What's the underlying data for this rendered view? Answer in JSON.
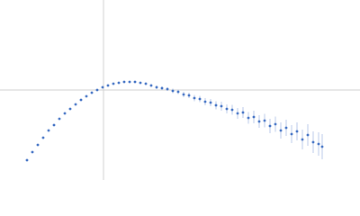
{
  "chart_data": {
    "type": "scatter",
    "x": [
      0.3,
      0.36,
      0.42,
      0.48,
      0.54,
      0.6,
      0.66,
      0.72,
      0.78,
      0.84,
      0.9,
      0.96,
      1.02,
      1.08,
      1.14,
      1.2,
      1.26,
      1.32,
      1.38,
      1.44,
      1.5,
      1.56,
      1.62,
      1.68,
      1.74,
      1.8,
      1.86,
      1.92,
      1.98,
      2.04,
      2.1,
      2.16,
      2.22,
      2.28,
      2.34,
      2.4,
      2.46,
      2.52,
      2.58,
      2.64,
      2.7,
      2.76,
      2.82,
      2.88,
      2.94,
      3.0,
      3.06,
      3.12,
      3.18,
      3.24,
      3.3,
      3.36,
      3.42,
      3.48,
      3.54,
      3.58
    ],
    "values": [
      -0.78,
      -0.69,
      -0.61,
      -0.53,
      -0.45,
      -0.39,
      -0.32,
      -0.26,
      -0.21,
      -0.16,
      -0.11,
      -0.07,
      -0.03,
      0.0,
      0.03,
      0.05,
      0.07,
      0.08,
      0.09,
      0.09,
      0.09,
      0.08,
      0.07,
      0.05,
      0.03,
      0.02,
      0.01,
      -0.01,
      -0.02,
      -0.05,
      -0.06,
      -0.09,
      -0.1,
      -0.13,
      -0.14,
      -0.17,
      -0.18,
      -0.21,
      -0.22,
      -0.26,
      -0.25,
      -0.31,
      -0.3,
      -0.35,
      -0.34,
      -0.4,
      -0.38,
      -0.45,
      -0.42,
      -0.49,
      -0.46,
      -0.55,
      -0.5,
      -0.58,
      -0.6,
      -0.63
    ],
    "errors": [
      0.01,
      0.01,
      0.01,
      0.01,
      0.01,
      0.01,
      0.01,
      0.01,
      0.01,
      0.01,
      0.01,
      0.01,
      0.01,
      0.01,
      0.01,
      0.01,
      0.01,
      0.01,
      0.01,
      0.01,
      0.01,
      0.01,
      0.015,
      0.015,
      0.02,
      0.02,
      0.02,
      0.025,
      0.025,
      0.03,
      0.03,
      0.035,
      0.035,
      0.04,
      0.04,
      0.045,
      0.05,
      0.05,
      0.055,
      0.06,
      0.06,
      0.065,
      0.07,
      0.07,
      0.075,
      0.08,
      0.085,
      0.09,
      0.09,
      0.1,
      0.1,
      0.11,
      0.12,
      0.12,
      0.13,
      0.14
    ],
    "color": "#3a6cc2",
    "error_color": "#a9bde3",
    "xlim": [
      0,
      4
    ],
    "ylim": [
      -1,
      1
    ],
    "reference_lines": {
      "x": 1.15,
      "y": 0
    }
  }
}
